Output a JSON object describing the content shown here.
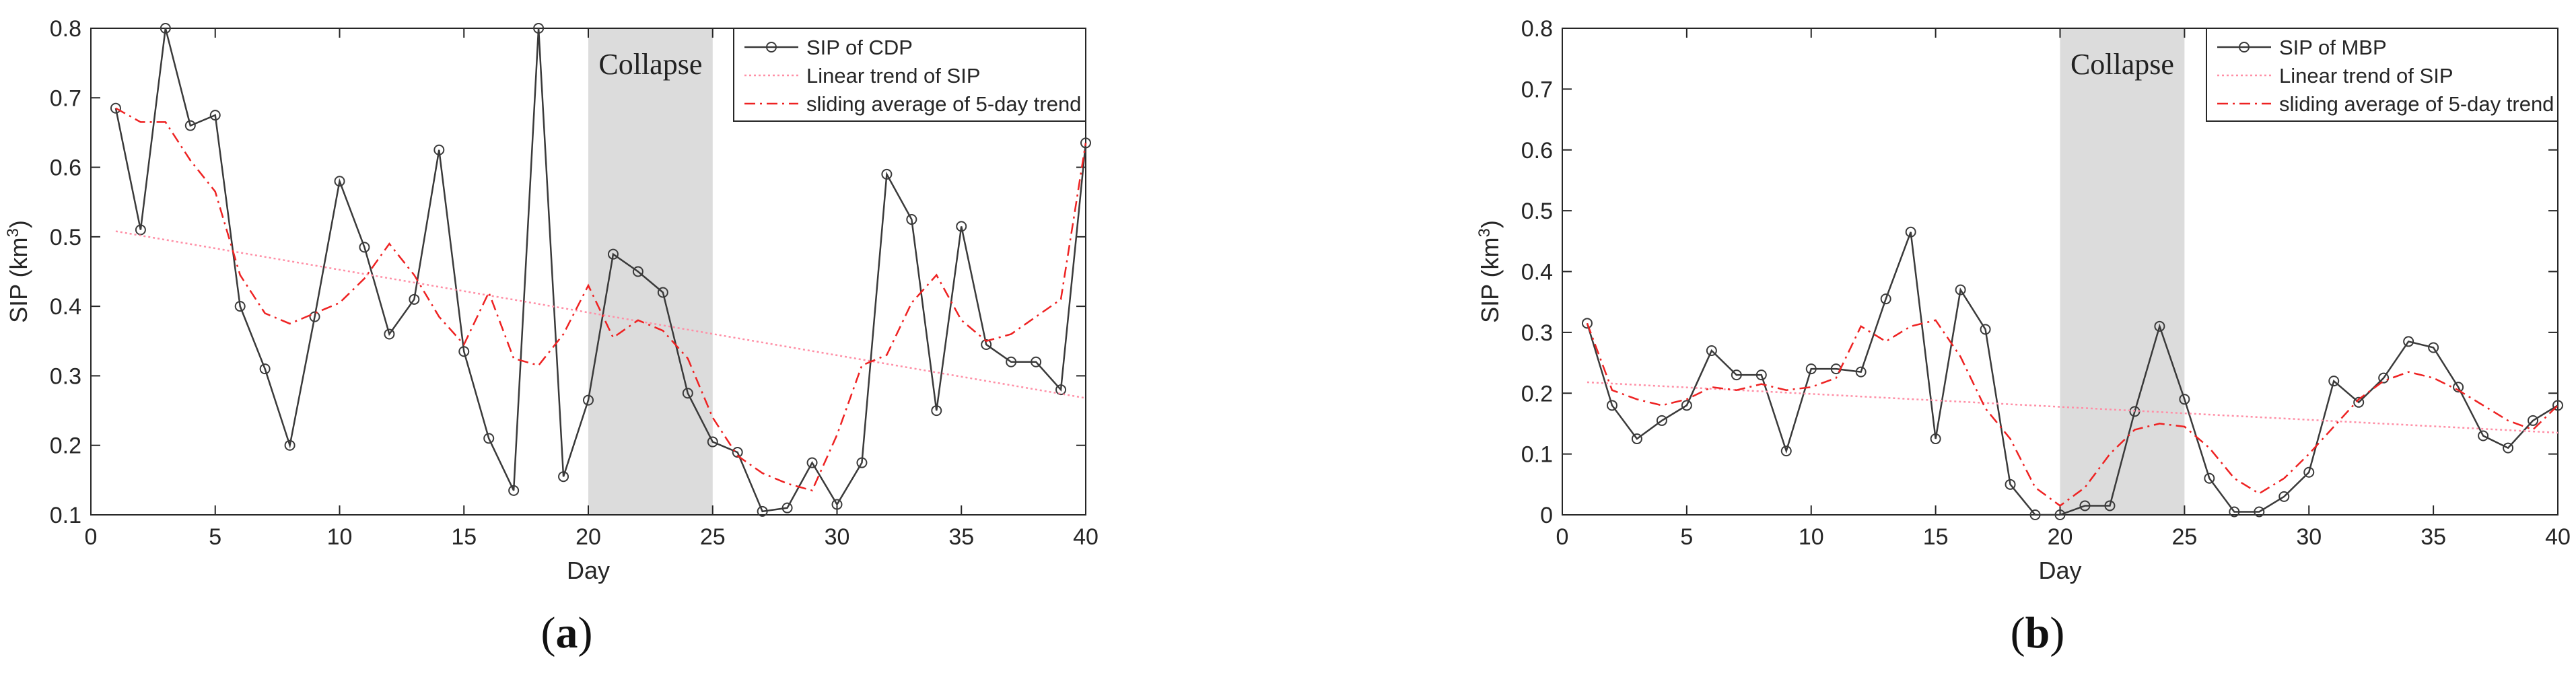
{
  "chart_data": [
    {
      "panel": "(a)",
      "type": "line",
      "xlabel": "Day",
      "ylabel_main": "SIP (km",
      "ylabel_sup": "3",
      "ylabel_end": ")",
      "xlim": [
        0,
        40
      ],
      "ylim": [
        0.1,
        0.8
      ],
      "xticks": [
        0,
        5,
        10,
        15,
        20,
        25,
        30,
        35,
        40
      ],
      "yticks": [
        0.1,
        0.2,
        0.3,
        0.4,
        0.5,
        0.6,
        0.7,
        0.8
      ],
      "grid": false,
      "legend_position": "top-right",
      "shaded_region": {
        "x0": 20,
        "x1": 25,
        "label": "Collapse"
      },
      "series": [
        {
          "name": "SIP of CDP",
          "style": "solid-circle",
          "color": "#3a3a3a",
          "x": [
            1,
            2,
            3,
            4,
            5,
            6,
            7,
            8,
            9,
            10,
            11,
            12,
            13,
            14,
            15,
            16,
            17,
            18,
            19,
            20,
            21,
            22,
            23,
            24,
            25,
            26,
            27,
            28,
            29,
            30,
            31,
            32,
            33,
            34,
            35,
            36,
            37,
            38,
            39,
            40
          ],
          "values": [
            0.685,
            0.51,
            0.8,
            0.66,
            0.675,
            0.4,
            0.31,
            0.2,
            0.385,
            0.58,
            0.485,
            0.36,
            0.41,
            0.625,
            0.335,
            0.21,
            0.135,
            0.8,
            0.155,
            0.265,
            0.475,
            0.45,
            0.42,
            0.275,
            0.205,
            0.19,
            0.105,
            0.11,
            0.175,
            0.115,
            0.175,
            0.59,
            0.525,
            0.25,
            0.515,
            0.345,
            0.32,
            0.32,
            0.28,
            0.635
          ]
        },
        {
          "name": "Linear trend of SIP",
          "style": "dotted",
          "color": "#ff8fa6",
          "x": [
            1,
            40
          ],
          "values": [
            0.508,
            0.268
          ]
        },
        {
          "name": "sliding average of 5-day trend",
          "style": "dashdot",
          "color": "#ee2222",
          "x": [
            1,
            2,
            3,
            4,
            5,
            6,
            7,
            8,
            9,
            10,
            11,
            12,
            13,
            14,
            15,
            16,
            17,
            18,
            19,
            20,
            21,
            22,
            23,
            24,
            25,
            26,
            27,
            28,
            29,
            30,
            31,
            32,
            33,
            34,
            35,
            36,
            37,
            38,
            39,
            40
          ],
          "values": [
            0.685,
            0.665,
            0.665,
            0.61,
            0.565,
            0.445,
            0.39,
            0.375,
            0.39,
            0.405,
            0.44,
            0.49,
            0.445,
            0.385,
            0.345,
            0.42,
            0.325,
            0.315,
            0.36,
            0.43,
            0.355,
            0.38,
            0.365,
            0.325,
            0.24,
            0.185,
            0.16,
            0.145,
            0.135,
            0.215,
            0.315,
            0.33,
            0.405,
            0.445,
            0.38,
            0.35,
            0.36,
            0.385,
            0.41,
            0.635
          ]
        }
      ]
    },
    {
      "panel": "(b)",
      "type": "line",
      "xlabel": "Day",
      "ylabel_main": "SIP (km",
      "ylabel_sup": "3",
      "ylabel_end": ")",
      "xlim": [
        0,
        40
      ],
      "ylim": [
        0,
        0.8
      ],
      "xticks": [
        0,
        5,
        10,
        15,
        20,
        25,
        30,
        35,
        40
      ],
      "yticks": [
        0,
        0.1,
        0.2,
        0.3,
        0.4,
        0.5,
        0.6,
        0.7,
        0.8
      ],
      "grid": false,
      "legend_position": "top-right",
      "shaded_region": {
        "x0": 20,
        "x1": 25,
        "label": "Collapse"
      },
      "series": [
        {
          "name": "SIP of MBP",
          "style": "solid-circle",
          "color": "#3a3a3a",
          "x": [
            1,
            2,
            3,
            4,
            5,
            6,
            7,
            8,
            9,
            10,
            11,
            12,
            13,
            14,
            15,
            16,
            17,
            18,
            19,
            20,
            21,
            22,
            23,
            24,
            25,
            26,
            27,
            28,
            29,
            30,
            31,
            32,
            33,
            34,
            35,
            36,
            37,
            38,
            39,
            40
          ],
          "values": [
            0.315,
            0.18,
            0.125,
            0.155,
            0.18,
            0.27,
            0.23,
            0.23,
            0.105,
            0.24,
            0.24,
            0.235,
            0.355,
            0.465,
            0.125,
            0.37,
            0.305,
            0.05,
            0.0,
            0.0,
            0.015,
            0.015,
            0.17,
            0.31,
            0.19,
            0.06,
            0.005,
            0.005,
            0.03,
            0.07,
            0.22,
            0.185,
            0.225,
            0.285,
            0.275,
            0.21,
            0.13,
            0.11,
            0.155,
            0.18
          ]
        },
        {
          "name": "Linear trend of SIP",
          "style": "dotted",
          "color": "#ff8fa6",
          "x": [
            1,
            40
          ],
          "values": [
            0.218,
            0.135
          ]
        },
        {
          "name": "sliding average of 5-day trend",
          "style": "dashdot",
          "color": "#ee2222",
          "x": [
            1,
            2,
            3,
            4,
            5,
            6,
            7,
            8,
            9,
            10,
            11,
            12,
            13,
            14,
            15,
            16,
            17,
            18,
            19,
            20,
            21,
            22,
            23,
            24,
            25,
            26,
            27,
            28,
            29,
            30,
            31,
            32,
            33,
            34,
            35,
            36,
            37,
            38,
            39,
            40
          ],
          "values": [
            0.315,
            0.205,
            0.19,
            0.18,
            0.19,
            0.21,
            0.205,
            0.215,
            0.205,
            0.21,
            0.225,
            0.31,
            0.285,
            0.31,
            0.32,
            0.26,
            0.175,
            0.125,
            0.045,
            0.015,
            0.045,
            0.1,
            0.14,
            0.15,
            0.145,
            0.11,
            0.06,
            0.035,
            0.06,
            0.1,
            0.145,
            0.19,
            0.22,
            0.235,
            0.225,
            0.205,
            0.18,
            0.155,
            0.14,
            0.18
          ]
        }
      ]
    }
  ]
}
